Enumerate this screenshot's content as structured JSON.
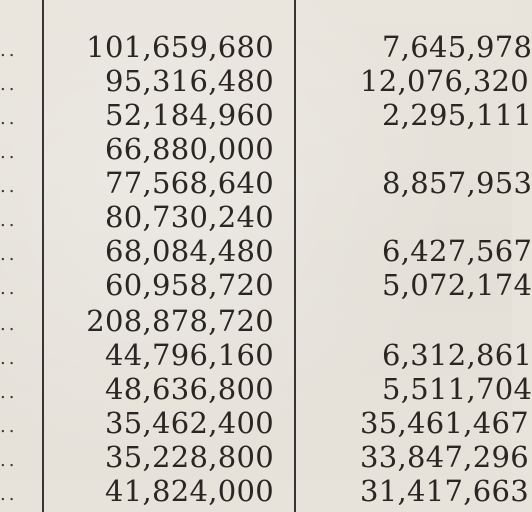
{
  "table": {
    "rows": [
      {
        "leader": "..",
        "a": "101,659,680",
        "b": "7,645,978"
      },
      {
        "leader": "..",
        "a": "95,316,480",
        "b": "12,076,320"
      },
      {
        "leader": "..",
        "a": "52,184,960",
        "b": "2,295,111"
      },
      {
        "leader": "..",
        "a": "66,880,000",
        "b": ""
      },
      {
        "leader": "..",
        "a": "77,568,640",
        "b": "8,857,953"
      },
      {
        "leader": "..",
        "a": "80,730,240",
        "b": ""
      },
      {
        "leader": "..",
        "a": "68,084,480",
        "b": "6,427,567"
      },
      {
        "leader": "..",
        "a": "60,958,720",
        "b": "5,072,174"
      },
      {
        "leader": "..",
        "a": "208,878,720",
        "b": ""
      },
      {
        "leader": "..",
        "a": "44,796,160",
        "b": "6,312,861"
      },
      {
        "leader": "..",
        "a": "48,636,800",
        "b": "5,511,704"
      },
      {
        "leader": "..",
        "a": "35,462,400",
        "b": "35,461,467"
      },
      {
        "leader": "..",
        "a": "35,228,800",
        "b": "33,847,296"
      },
      {
        "leader": "..",
        "a": "41,824,000",
        "b": "31,417,663"
      }
    ]
  }
}
